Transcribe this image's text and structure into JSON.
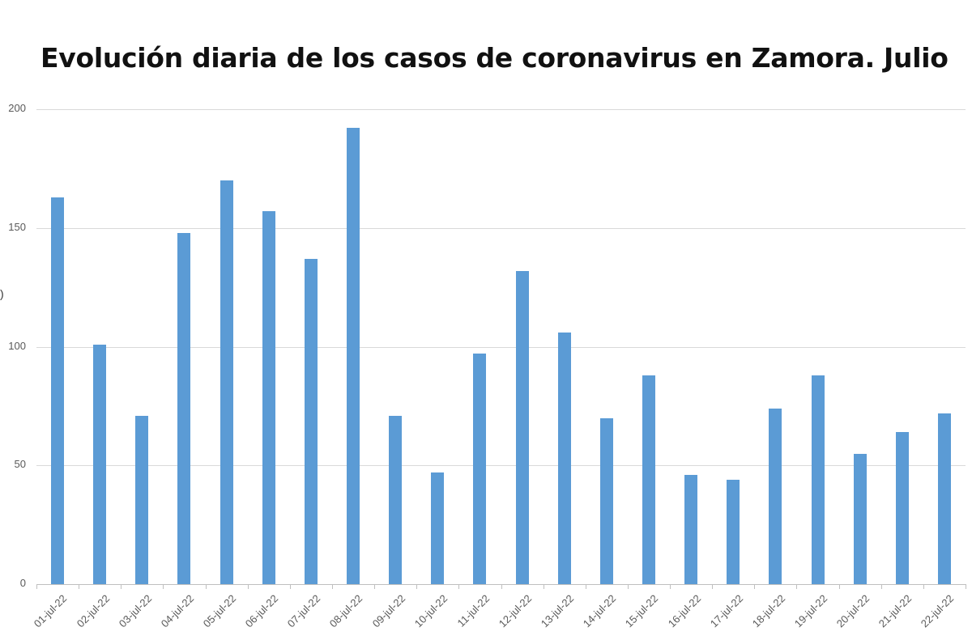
{
  "chart_data": {
    "type": "bar",
    "title": "Evolución diaria de los casos de coronavirus en Zamora. Julio",
    "xlabel": "",
    "ylabel": "",
    "ylim": [
      0,
      200
    ],
    "yticks": [
      "0",
      "50",
      "100",
      "150",
      "200"
    ],
    "grid": true,
    "legend": null,
    "bar_color": "#5b9bd5",
    "categories": [
      "01-jul-22",
      "02-jul-22",
      "03-jul-22",
      "04-jul-22",
      "05-jul-22",
      "06-jul-22",
      "07-jul-22",
      "08-jul-22",
      "09-jul-22",
      "10-jul-22",
      "11-jul-22",
      "12-jul-22",
      "13-jul-22",
      "14-jul-22",
      "15-jul-22",
      "16-jul-22",
      "17-jul-22",
      "18-jul-22",
      "19-jul-22",
      "20-jul-22",
      "21-jul-22",
      "22-jul-22"
    ],
    "values": [
      163,
      101,
      71,
      148,
      170,
      157,
      137,
      192,
      71,
      47,
      97,
      132,
      106,
      70,
      88,
      46,
      44,
      74,
      88,
      55,
      64,
      72
    ]
  },
  "stray_glyph": ")"
}
